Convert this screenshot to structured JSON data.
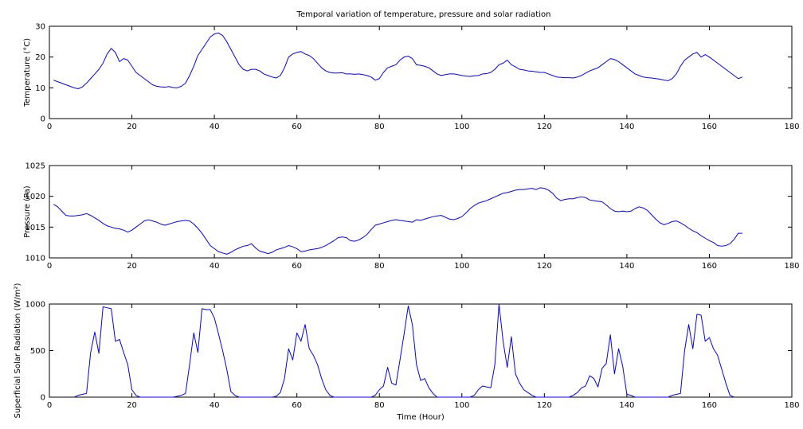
{
  "figure": {
    "title": "Temporal variation of temperature, pressure and solar radiation",
    "line_color": "#0000ff",
    "axis_color": "#000000"
  },
  "chart_data": [
    {
      "type": "line",
      "title": "Temporal variation of temperature, pressure and solar radiation",
      "xlabel": "",
      "ylabel": "Temperature (°C)",
      "xlim": [
        0,
        180
      ],
      "ylim": [
        0,
        30
      ],
      "xticks": [
        0,
        20,
        40,
        60,
        80,
        100,
        120,
        140,
        160,
        180
      ],
      "yticks": [
        0,
        10,
        20,
        30
      ],
      "grid": false,
      "series": [
        {
          "x": [
            1,
            2,
            3,
            4,
            5,
            6,
            7,
            8,
            9,
            10,
            11,
            12,
            13,
            14,
            15,
            16,
            17,
            18,
            19,
            20,
            21,
            22,
            23,
            24,
            25,
            26,
            27,
            28,
            29,
            30,
            31,
            32,
            33,
            34,
            35,
            36,
            37,
            38,
            39,
            40,
            41,
            42,
            43,
            44,
            45,
            46,
            47,
            48,
            49,
            50,
            51,
            52,
            53,
            54,
            55,
            56,
            57,
            58,
            59,
            60,
            61,
            62,
            63,
            64,
            65,
            66,
            67,
            68,
            69,
            70,
            71,
            72,
            73,
            74,
            75,
            76,
            77,
            78,
            79,
            80,
            81,
            82,
            83,
            84,
            85,
            86,
            87,
            88,
            89,
            90,
            91,
            92,
            93,
            94,
            95,
            96,
            97,
            98,
            99,
            100,
            101,
            102,
            103,
            104,
            105,
            106,
            107,
            108,
            109,
            110,
            111,
            112,
            113,
            114,
            115,
            116,
            117,
            118,
            119,
            120,
            121,
            122,
            123,
            124,
            125,
            126,
            127,
            128,
            129,
            130,
            131,
            132,
            133,
            134,
            135,
            136,
            137,
            138,
            139,
            140,
            141,
            142,
            143,
            144,
            145,
            146,
            147,
            148,
            149,
            150,
            151,
            152,
            153,
            154,
            155,
            156,
            157,
            158,
            159,
            160,
            161,
            162,
            163,
            164,
            165,
            166,
            167,
            168
          ],
          "y": [
            12.5,
            12.0,
            11.5,
            11.0,
            10.5,
            10.0,
            9.7,
            10.3,
            11.5,
            13.0,
            14.5,
            16.0,
            18.0,
            21.0,
            22.8,
            21.5,
            18.5,
            19.5,
            19.0,
            17.0,
            15.0,
            14.0,
            13.0,
            12.0,
            11.0,
            10.5,
            10.3,
            10.2,
            10.4,
            10.1,
            10.0,
            10.5,
            11.5,
            14.0,
            17.0,
            20.5,
            22.5,
            24.5,
            26.5,
            27.5,
            27.8,
            27.0,
            25.0,
            22.5,
            20.0,
            17.5,
            16.0,
            15.5,
            16.0,
            16.0,
            15.5,
            14.5,
            14.0,
            13.5,
            13.2,
            14.0,
            16.5,
            20.0,
            21.0,
            21.5,
            21.8,
            21.0,
            20.5,
            19.5,
            18.0,
            16.5,
            15.5,
            15.0,
            14.8,
            14.8,
            14.9,
            14.5,
            14.5,
            14.4,
            14.5,
            14.3,
            14.0,
            13.5,
            12.5,
            13.0,
            15.0,
            16.5,
            17.0,
            17.5,
            19.0,
            20.0,
            20.3,
            19.5,
            17.5,
            17.3,
            17.0,
            16.5,
            15.5,
            14.5,
            14.0,
            14.3,
            14.5,
            14.5,
            14.3,
            14.0,
            13.8,
            13.7,
            13.9,
            14.0,
            14.5,
            14.6,
            15.0,
            16.0,
            17.5,
            18.0,
            19.0,
            17.5,
            16.8,
            16.0,
            15.8,
            15.5,
            15.4,
            15.2,
            15.0,
            15.0,
            14.5,
            14.0,
            13.5,
            13.4,
            13.3,
            13.3,
            13.2,
            13.5,
            14.0,
            14.8,
            15.5,
            16.0,
            16.5,
            17.5,
            18.5,
            19.5,
            19.2,
            18.5,
            17.5,
            16.5,
            15.5,
            14.5,
            14.0,
            13.5,
            13.3,
            13.2,
            13.0,
            12.8,
            12.5,
            12.3,
            13.0,
            14.5,
            17.0,
            19.0,
            20.0,
            21.0,
            21.5,
            20.0,
            20.8,
            20.0,
            19.0,
            18.0,
            17.0,
            16.0,
            15.0,
            14.0,
            13.0,
            13.5
          ]
        }
      ]
    },
    {
      "type": "line",
      "title": "",
      "xlabel": "",
      "ylabel": "Pressure (Pa)",
      "xlim": [
        0,
        180
      ],
      "ylim": [
        1010,
        1025
      ],
      "xticks": [
        0,
        20,
        40,
        60,
        80,
        100,
        120,
        140,
        160,
        180
      ],
      "yticks": [
        1010,
        1015,
        1020,
        1025
      ],
      "grid": false,
      "series": [
        {
          "x": [
            1,
            2,
            3,
            4,
            5,
            6,
            7,
            8,
            9,
            10,
            11,
            12,
            13,
            14,
            15,
            16,
            17,
            18,
            19,
            20,
            21,
            22,
            23,
            24,
            25,
            26,
            27,
            28,
            29,
            30,
            31,
            32,
            33,
            34,
            35,
            36,
            37,
            38,
            39,
            40,
            41,
            42,
            43,
            44,
            45,
            46,
            47,
            48,
            49,
            50,
            51,
            52,
            53,
            54,
            55,
            56,
            57,
            58,
            59,
            60,
            61,
            62,
            63,
            64,
            65,
            66,
            67,
            68,
            69,
            70,
            71,
            72,
            73,
            74,
            75,
            76,
            77,
            78,
            79,
            80,
            81,
            82,
            83,
            84,
            85,
            86,
            87,
            88,
            89,
            90,
            91,
            92,
            93,
            94,
            95,
            96,
            97,
            98,
            99,
            100,
            101,
            102,
            103,
            104,
            105,
            106,
            107,
            108,
            109,
            110,
            111,
            112,
            113,
            114,
            115,
            116,
            117,
            118,
            119,
            120,
            121,
            122,
            123,
            124,
            125,
            126,
            127,
            128,
            129,
            130,
            131,
            132,
            133,
            134,
            135,
            136,
            137,
            138,
            139,
            140,
            141,
            142,
            143,
            144,
            145,
            146,
            147,
            148,
            149,
            150,
            151,
            152,
            153,
            154,
            155,
            156,
            157,
            158,
            159,
            160,
            161,
            162,
            163,
            164,
            165,
            166,
            167,
            168
          ],
          "y": [
            1018.7,
            1018.3,
            1017.6,
            1016.9,
            1016.8,
            1016.8,
            1016.9,
            1017.0,
            1017.2,
            1016.9,
            1016.5,
            1016.1,
            1015.6,
            1015.2,
            1015.0,
            1014.8,
            1014.7,
            1014.5,
            1014.2,
            1014.5,
            1015.0,
            1015.5,
            1016.0,
            1016.2,
            1016.0,
            1015.8,
            1015.5,
            1015.3,
            1015.5,
            1015.7,
            1015.9,
            1016.0,
            1016.1,
            1016.0,
            1015.5,
            1014.8,
            1014.0,
            1013.0,
            1012.0,
            1011.5,
            1011.0,
            1010.8,
            1010.6,
            1010.9,
            1011.3,
            1011.6,
            1011.9,
            1012.0,
            1012.3,
            1011.6,
            1011.1,
            1010.9,
            1010.7,
            1010.9,
            1011.3,
            1011.5,
            1011.7,
            1012.0,
            1011.8,
            1011.5,
            1011.0,
            1011.1,
            1011.3,
            1011.4,
            1011.5,
            1011.7,
            1012.0,
            1012.4,
            1012.8,
            1013.3,
            1013.4,
            1013.3,
            1012.8,
            1012.7,
            1012.9,
            1013.3,
            1013.8,
            1014.6,
            1015.3,
            1015.5,
            1015.7,
            1015.9,
            1016.1,
            1016.2,
            1016.1,
            1016.0,
            1015.9,
            1015.8,
            1016.2,
            1016.1,
            1016.3,
            1016.5,
            1016.7,
            1016.8,
            1016.9,
            1016.6,
            1016.3,
            1016.2,
            1016.4,
            1016.7,
            1017.3,
            1018.0,
            1018.5,
            1018.9,
            1019.1,
            1019.3,
            1019.6,
            1019.9,
            1020.2,
            1020.5,
            1020.6,
            1020.8,
            1021.0,
            1021.1,
            1021.1,
            1021.2,
            1021.3,
            1021.1,
            1021.4,
            1021.3,
            1021.0,
            1020.5,
            1019.7,
            1019.3,
            1019.5,
            1019.6,
            1019.6,
            1019.8,
            1019.9,
            1019.8,
            1019.4,
            1019.3,
            1019.2,
            1019.1,
            1018.6,
            1018.0,
            1017.6,
            1017.5,
            1017.6,
            1017.5,
            1017.6,
            1018.0,
            1018.3,
            1018.1,
            1017.7,
            1017.0,
            1016.3,
            1015.7,
            1015.4,
            1015.6,
            1015.9,
            1016.0,
            1015.7,
            1015.3,
            1014.8,
            1014.4,
            1014.1,
            1013.6,
            1013.2,
            1012.8,
            1012.5,
            1012.0,
            1011.9,
            1012.0,
            1012.3,
            1013.0,
            1014.0,
            1014.0
          ]
        }
      ]
    },
    {
      "type": "line",
      "title": "",
      "xlabel": "Time (Hour)",
      "ylabel": "Superficial Solar Radiation (W/m²)",
      "xlim": [
        0,
        180
      ],
      "ylim": [
        0,
        1000
      ],
      "xticks": [
        0,
        20,
        40,
        60,
        80,
        100,
        120,
        140,
        160,
        180
      ],
      "yticks": [
        0,
        500,
        1000
      ],
      "grid": false,
      "series": [
        {
          "x": [
            6,
            7,
            8,
            9,
            10,
            11,
            12,
            13,
            14,
            15,
            16,
            17,
            18,
            19,
            20,
            21,
            22,
            30,
            31,
            32,
            33,
            34,
            35,
            36,
            37,
            38,
            39,
            40,
            41,
            42,
            43,
            44,
            45,
            46,
            54,
            55,
            56,
            57,
            58,
            59,
            60,
            61,
            62,
            63,
            64,
            65,
            66,
            67,
            68,
            69,
            70,
            78,
            79,
            80,
            81,
            82,
            83,
            84,
            85,
            86,
            87,
            88,
            89,
            90,
            91,
            92,
            93,
            94,
            102,
            103,
            104,
            105,
            106,
            107,
            108,
            109,
            110,
            111,
            112,
            113,
            114,
            115,
            116,
            117,
            118,
            126,
            127,
            128,
            129,
            130,
            131,
            132,
            133,
            134,
            135,
            136,
            137,
            138,
            139,
            140,
            141,
            142,
            150,
            151,
            152,
            153,
            154,
            155,
            156,
            157,
            158,
            159,
            160,
            161,
            162,
            163,
            164,
            165,
            166
          ],
          "y": [
            0,
            20,
            30,
            40,
            480,
            700,
            470,
            970,
            960,
            950,
            600,
            620,
            480,
            350,
            80,
            20,
            0,
            0,
            10,
            20,
            40,
            350,
            690,
            480,
            950,
            940,
            940,
            850,
            680,
            500,
            300,
            60,
            20,
            0,
            0,
            10,
            50,
            200,
            520,
            400,
            690,
            600,
            780,
            520,
            450,
            350,
            200,
            80,
            20,
            0,
            0,
            0,
            20,
            80,
            120,
            320,
            150,
            130,
            400,
            680,
            980,
            780,
            350,
            180,
            200,
            100,
            40,
            0,
            0,
            20,
            80,
            120,
            110,
            100,
            350,
            1000,
            600,
            320,
            650,
            250,
            150,
            80,
            50,
            20,
            0,
            0,
            20,
            50,
            100,
            120,
            230,
            200,
            110,
            310,
            360,
            670,
            250,
            520,
            330,
            30,
            20,
            0,
            0,
            20,
            30,
            40,
            500,
            780,
            520,
            890,
            880,
            600,
            640,
            520,
            450,
            300,
            150,
            20,
            0
          ]
        }
      ]
    }
  ]
}
